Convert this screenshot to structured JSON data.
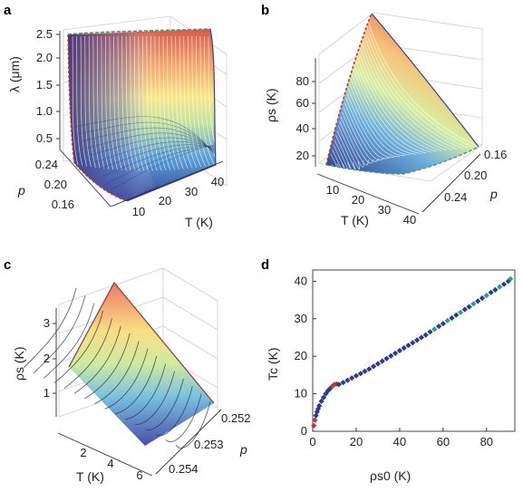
{
  "chart_data": [
    {
      "panel": "a",
      "type": "surface",
      "xlabel": "T (K)",
      "ylabel": "p",
      "zlabel": "λ (μm)",
      "x_ticks": [
        "10",
        "20",
        "30",
        "40"
      ],
      "y_ticks": [
        "0.24",
        "0.20",
        "0.16"
      ],
      "z_ticks": [
        "0.5",
        "1.0",
        "1.5",
        "2.0",
        "2.5"
      ],
      "xlim": [
        0,
        45
      ],
      "ylim": [
        0.14,
        0.26
      ],
      "zlim": [
        0.2,
        2.5
      ]
    },
    {
      "panel": "b",
      "type": "surface",
      "xlabel": "T (K)",
      "ylabel": "p",
      "zlabel": "ρs (K)",
      "x_ticks": [
        "10",
        "20",
        "30",
        "40"
      ],
      "y_ticks": [
        "0.16",
        "0.20",
        "0.24"
      ],
      "z_ticks": [
        "20",
        "40",
        "60",
        "80"
      ],
      "xlim": [
        0,
        45
      ],
      "ylim": [
        0.14,
        0.26
      ],
      "zlim": [
        10,
        95
      ]
    },
    {
      "panel": "c",
      "type": "surface",
      "xlabel": "T (K)",
      "ylabel": "p",
      "zlabel": "ρs (K)",
      "x_ticks": [
        "2",
        "4",
        "6"
      ],
      "y_ticks": [
        "0.252",
        "0.253",
        "0.254"
      ],
      "z_ticks": [
        "1",
        "2",
        "3"
      ],
      "xlim": [
        0,
        7
      ],
      "ylim": [
        0.2515,
        0.2545
      ],
      "zlim": [
        0,
        3.5
      ]
    },
    {
      "panel": "d",
      "type": "scatter",
      "xlabel": "ρs0 (K)",
      "ylabel": "Tc (K)",
      "x_ticks": [
        "0",
        "20",
        "40",
        "60",
        "80"
      ],
      "y_ticks": [
        "0",
        "10",
        "20",
        "30",
        "40"
      ],
      "xlim": [
        0,
        93
      ],
      "ylim": [
        0,
        43
      ],
      "grid": false,
      "colors": {
        "low": "#c0392b",
        "mid": "#2b3b8f",
        "high": "#2aa08a"
      },
      "x": [
        0.5,
        1,
        1.5,
        2,
        2.5,
        3,
        4,
        5,
        6,
        7,
        8,
        9,
        10,
        11,
        12,
        14,
        16,
        18,
        20,
        22,
        24,
        26,
        28,
        30,
        32,
        34,
        36,
        38,
        40,
        42,
        44,
        46,
        48,
        50,
        52,
        54,
        56,
        58,
        60,
        62,
        64,
        66,
        68,
        70,
        72,
        74,
        76,
        78,
        80,
        82,
        84,
        86,
        88,
        90,
        91
      ],
      "y": [
        1.5,
        3,
        4.2,
        5.2,
        6,
        6.8,
        8,
        9,
        10,
        10.8,
        11.4,
        12,
        12.5,
        12.6,
        12.5,
        13,
        13.6,
        14.2,
        14.8,
        15.4,
        16,
        16.6,
        17.3,
        18,
        18.7,
        19.4,
        20.1,
        20.8,
        21.5,
        22.2,
        22.9,
        23.6,
        24.3,
        25,
        25.7,
        26.5,
        27.2,
        28,
        28.7,
        29.5,
        30.2,
        31,
        31.7,
        32.5,
        33.2,
        34,
        34.7,
        35.5,
        36.2,
        37,
        37.7,
        38.5,
        39.2,
        40,
        40.6
      ]
    }
  ]
}
